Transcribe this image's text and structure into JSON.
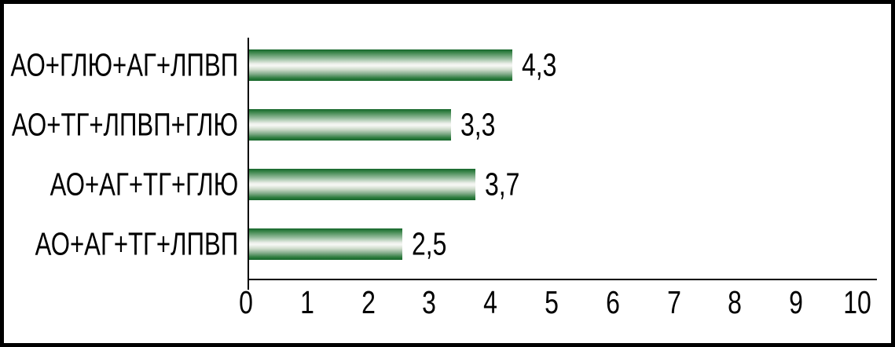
{
  "chart_data": {
    "type": "bar",
    "orientation": "horizontal",
    "title": "",
    "xlabel": "",
    "ylabel": "",
    "categories": [
      "АО+ГЛЮ+АГ+ЛПВП",
      "АО+ТГ+ЛПВП+ГЛЮ",
      "АО+АГ+ТГ+ГЛЮ",
      "АО+АГ+ТГ+ЛПВП"
    ],
    "values": [
      4.3,
      3.3,
      3.7,
      2.5
    ],
    "value_labels": [
      "4,3",
      "3,3",
      "3,7",
      "2,5"
    ],
    "x_ticks": [
      0,
      1,
      2,
      3,
      4,
      5,
      6,
      7,
      8,
      9,
      10
    ],
    "xlim": [
      0,
      10
    ],
    "grid": false,
    "legend": false,
    "decimal_separator": ",",
    "colors": {
      "bar_dark": "#15662a",
      "bar_light": "#f6f8f4",
      "axis": "#000000",
      "text": "#000000",
      "frame_border": "#000000",
      "background": "#ffffff"
    }
  }
}
